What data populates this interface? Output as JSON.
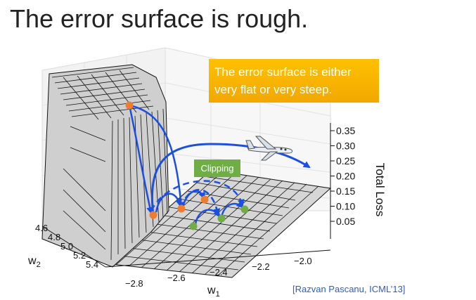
{
  "slide": {
    "title": "The error surface is rough.",
    "callout": "The error surface is either very flat or very steep.",
    "clipping_label": "Clipping",
    "citation": "[Razvan Pascanu, ICML’13]"
  },
  "plot": {
    "z_axis_label": "Total Loss",
    "z_ticks": [
      "0.35",
      "0.30",
      "0.25",
      "0.20",
      "0.15",
      "0.10",
      "0.05"
    ],
    "x_axis_label": "w",
    "x_axis_sub": "1",
    "x_ticks": [
      "−2.8",
      "−2.6",
      "−2.4",
      "−2.2",
      "−2.0"
    ],
    "y_axis_label": "w",
    "y_axis_sub": "2",
    "y_ticks": [
      "4.6",
      "4.8",
      "5.0",
      "5.2",
      "5.4"
    ]
  },
  "colors": {
    "callout_bg": "#ffc000",
    "clipping_bg": "#70ad47",
    "arrow": "#1a4fe0",
    "point_orange": "#ed7d31",
    "point_green": "#70ad47",
    "citation": "#2e5ccb"
  },
  "icons": [
    "airplane-icon"
  ]
}
